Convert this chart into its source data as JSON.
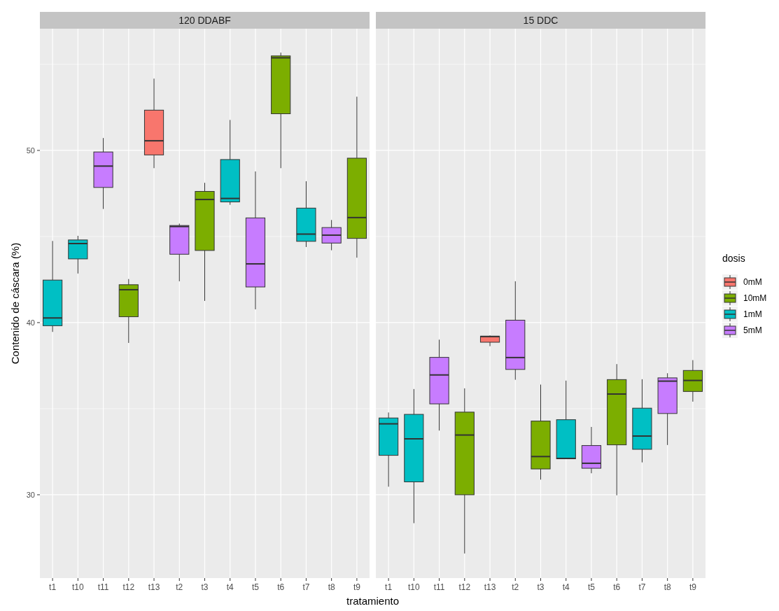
{
  "chart_data": [
    {
      "type": "box",
      "title": "120 DDABF",
      "xlabel": "tratamiento",
      "ylabel": "Contenido de cáscara (%)",
      "categories": [
        "t1",
        "t10",
        "t11",
        "t12",
        "t13",
        "t2",
        "t3",
        "t4",
        "t5",
        "t6",
        "t7",
        "t8",
        "t9"
      ],
      "ylim": [
        25.16,
        57.07
      ],
      "yticks": [
        30,
        {
          "value": 35,
          "label": null
        },
        40,
        {
          "value": 45,
          "label": null
        },
        50,
        {
          "value": 55,
          "label": null
        }
      ],
      "grid": true,
      "legend": false,
      "series": [
        {
          "color": "#f8766d",
          "boxes": [
            null,
            null,
            null,
            null,
            {
              "low": 48.97,
              "q1": 49.74,
              "median": 50.56,
              "q3": 52.34,
              "high": 54.17
            },
            null,
            null,
            null,
            null,
            null,
            null,
            null,
            null
          ]
        },
        {
          "color": "#7cae00",
          "boxes": [
            null,
            null,
            null,
            {
              "low": 38.82,
              "q1": 40.34,
              "median": 41.91,
              "q3": 42.2,
              "high": 42.53
            },
            null,
            null,
            {
              "low": 41.26,
              "q1": 44.19,
              "median": 47.15,
              "q3": 47.62,
              "high": 48.12
            },
            null,
            null,
            {
              "low": 48.97,
              "q1": 52.13,
              "median": 55.38,
              "q3": 55.49,
              "high": 55.68
            },
            null,
            null,
            {
              "low": 43.77,
              "q1": 44.89,
              "median": 46.1,
              "q3": 49.55,
              "high": 53.12
            }
          ]
        },
        {
          "color": "#00bfc4",
          "boxes": [
            {
              "low": 39.46,
              "q1": 39.82,
              "median": 40.27,
              "q3": 42.47,
              "high": 44.74
            },
            {
              "low": 42.85,
              "q1": 43.7,
              "median": 44.59,
              "q3": 44.8,
              "high": 45.04
            },
            null,
            null,
            null,
            null,
            null,
            {
              "low": 46.84,
              "q1": 47.01,
              "median": 47.21,
              "q3": 49.47,
              "high": 51.77
            },
            null,
            null,
            {
              "low": 44.39,
              "q1": 44.72,
              "median": 45.14,
              "q3": 46.65,
              "high": 48.21
            },
            null,
            null
          ]
        },
        {
          "color": "#c77cff",
          "boxes": [
            null,
            null,
            {
              "low": 46.6,
              "q1": 47.85,
              "median": 49.09,
              "q3": 49.91,
              "high": 50.72
            },
            null,
            null,
            {
              "low": 42.4,
              "q1": 43.97,
              "median": 45.58,
              "q3": 45.64,
              "high": 45.75
            },
            null,
            null,
            {
              "low": 40.77,
              "q1": 42.07,
              "median": 43.41,
              "q3": 46.08,
              "high": 48.78
            },
            null,
            null,
            {
              "low": 44.2,
              "q1": 44.62,
              "median": 45.08,
              "q3": 45.52,
              "high": 45.96
            },
            null
          ]
        }
      ]
    },
    {
      "type": "box",
      "title": "15 DDC",
      "legend_title": "dosis",
      "categories": [
        "t1",
        "t10",
        "t11",
        "t12",
        "t13",
        "t2",
        "t3",
        "t4",
        "t5",
        "t6",
        "t7",
        "t8",
        "t9"
      ],
      "ylim": [
        25.16,
        57.07
      ],
      "yticks": [
        30,
        {
          "value": 35,
          "label": null
        },
        40,
        {
          "value": 45,
          "label": null
        },
        50,
        {
          "value": 55,
          "label": null
        }
      ],
      "grid": true,
      "legend": "right",
      "tick_labels": "x",
      "series": [
        {
          "name": "0mM",
          "color": "#f8766d",
          "boxes": [
            null,
            null,
            null,
            null,
            {
              "low": 38.63,
              "q1": 38.86,
              "median": 39.19,
              "q3": 39.21,
              "high": 39.25
            },
            null,
            null,
            null,
            null,
            null,
            null,
            null,
            null
          ]
        },
        {
          "name": "10mM",
          "color": "#7cae00",
          "boxes": [
            null,
            null,
            null,
            {
              "low": 26.59,
              "q1": 30.0,
              "median": 33.47,
              "q3": 34.8,
              "high": 36.18
            },
            null,
            null,
            {
              "low": 30.88,
              "q1": 31.5,
              "median": 32.22,
              "q3": 34.28,
              "high": 36.4
            },
            null,
            null,
            {
              "low": 29.97,
              "q1": 32.9,
              "median": 35.85,
              "q3": 36.69,
              "high": 37.59
            },
            null,
            null,
            {
              "low": 35.41,
              "q1": 36.0,
              "median": 36.64,
              "q3": 37.22,
              "high": 37.82
            }
          ]
        },
        {
          "name": "1mM",
          "color": "#00bfc4",
          "boxes": [
            {
              "low": 30.47,
              "q1": 32.29,
              "median": 34.12,
              "q3": 34.46,
              "high": 34.78
            },
            {
              "low": 28.35,
              "q1": 30.75,
              "median": 33.25,
              "q3": 34.67,
              "high": 36.14
            },
            null,
            null,
            null,
            null,
            null,
            {
              "low": 32.08,
              "q1": 32.09,
              "median": 32.11,
              "q3": 34.36,
              "high": 36.63
            },
            null,
            null,
            {
              "low": 31.88,
              "q1": 32.64,
              "median": 33.41,
              "q3": 35.03,
              "high": 36.71
            },
            null,
            null
          ]
        },
        {
          "name": "5mM",
          "color": "#c77cff",
          "boxes": [
            null,
            null,
            {
              "low": 33.73,
              "q1": 35.28,
              "median": 36.96,
              "q3": 37.98,
              "high": 39.01
            },
            null,
            null,
            {
              "low": 36.68,
              "q1": 37.28,
              "median": 37.97,
              "q3": 40.14,
              "high": 42.4
            },
            null,
            null,
            {
              "low": 31.25,
              "q1": 31.54,
              "median": 31.83,
              "q3": 32.86,
              "high": 33.94
            },
            null,
            null,
            {
              "low": 32.89,
              "q1": 34.72,
              "median": 36.6,
              "q3": 36.79,
              "high": 37.06
            },
            null
          ]
        }
      ]
    }
  ]
}
